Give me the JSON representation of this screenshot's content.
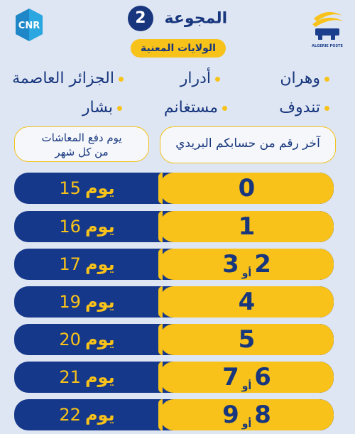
{
  "header": {
    "group_label": "المجوعة",
    "group_number": "2",
    "states_label": "الولايات المعنية",
    "cnr_logo_text": "CNR",
    "poste_logo_text": "ALGERIE POSTE"
  },
  "states": [
    {
      "name": "وهران"
    },
    {
      "name": "أدرار"
    },
    {
      "name": "الجزائر العاصمة"
    },
    {
      "name": "تندوف"
    },
    {
      "name": "مستغانم"
    },
    {
      "name": "بشار"
    }
  ],
  "columns": {
    "left": "يوم دفع المعاشات من كل شهر",
    "left_line1": "يوم دفع المعاشات",
    "left_line2": "من كل شهر",
    "right": "آخر رقم من حسابكم البريدي"
  },
  "or_label": "أو",
  "day_label": "يوم",
  "rows": [
    {
      "d1": "0",
      "d2": "",
      "day": "15"
    },
    {
      "d1": "1",
      "d2": "",
      "day": "16"
    },
    {
      "d1": "2",
      "d2": "3",
      "day": "17"
    },
    {
      "d1": "4",
      "d2": "",
      "day": "19"
    },
    {
      "d1": "5",
      "d2": "",
      "day": "20"
    },
    {
      "d1": "6",
      "d2": "7",
      "day": "21"
    },
    {
      "d1": "8",
      "d2": "9",
      "day": "22"
    }
  ],
  "colors": {
    "navy": "#16388a",
    "yellow": "#f8c21a",
    "background": "#dfe6f3"
  }
}
